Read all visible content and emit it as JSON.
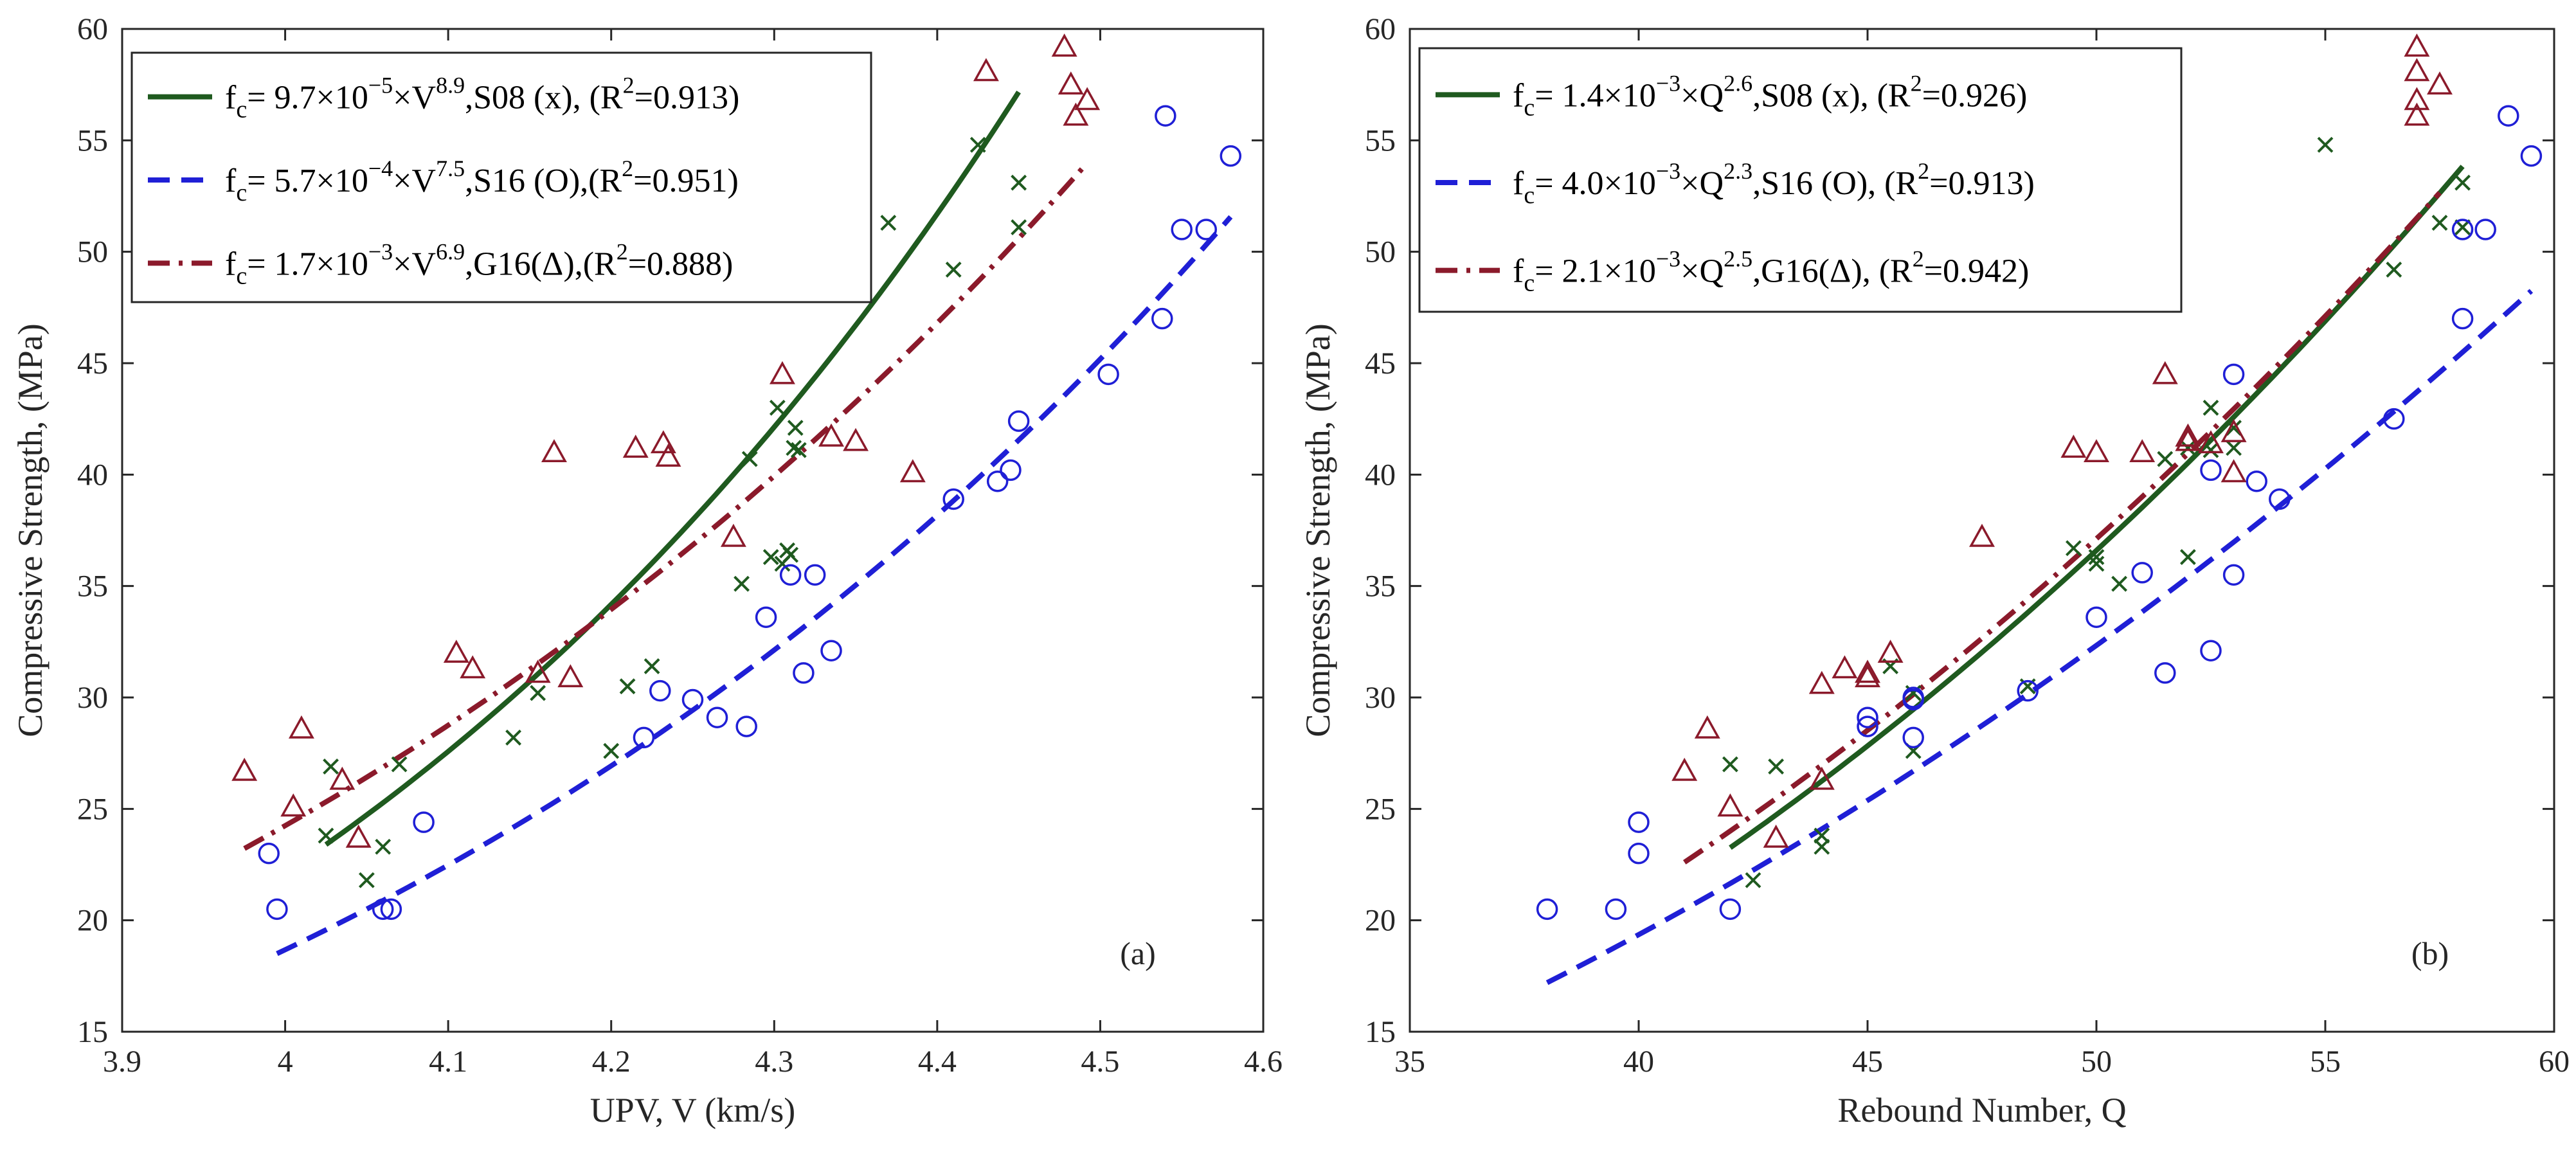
{
  "colors": {
    "s08": "#1f5a1f",
    "s16": "#1f1fd6",
    "g16": "#8b1a2b",
    "axis": "#262626"
  },
  "chart_data": [
    {
      "panel": "(a)",
      "type": "scatter",
      "xlabel": "UPV, V (km/s)",
      "ylabel": "Compressive Strength, (MPa)",
      "xlim": [
        3.9,
        4.6
      ],
      "ylim": [
        15,
        60
      ],
      "xticks": [
        3.9,
        4.0,
        4.1,
        4.2,
        4.3,
        4.4,
        4.5,
        4.6
      ],
      "xtick_labels": [
        "3.9",
        "4",
        "4.1",
        "4.2",
        "4.3",
        "4.4",
        "4.5",
        "4.6"
      ],
      "yticks": [
        15,
        20,
        25,
        30,
        35,
        40,
        45,
        50,
        55,
        60
      ],
      "ytick_labels": [
        "15",
        "20",
        "25",
        "30",
        "35",
        "40",
        "45",
        "50",
        "55",
        "60"
      ],
      "legend_position": "top-left",
      "series": [
        {
          "name": "S08 (x)",
          "marker": "x",
          "color_key": "s08",
          "points": [
            [
              4.025,
              23.8
            ],
            [
              4.028,
              26.9
            ],
            [
              4.05,
              21.8
            ],
            [
              4.06,
              23.3
            ],
            [
              4.07,
              27.0
            ],
            [
              4.14,
              28.2
            ],
            [
              4.155,
              30.2
            ],
            [
              4.2,
              27.6
            ],
            [
              4.21,
              30.5
            ],
            [
              4.225,
              31.4
            ],
            [
              4.28,
              35.1
            ],
            [
              4.285,
              40.7
            ],
            [
              4.298,
              36.3
            ],
            [
              4.302,
              43.0
            ],
            [
              4.305,
              36.0
            ],
            [
              4.308,
              36.6
            ],
            [
              4.31,
              36.4
            ],
            [
              4.312,
              41.2
            ],
            [
              4.313,
              42.1
            ],
            [
              4.315,
              41.1
            ],
            [
              4.37,
              51.3
            ],
            [
              4.41,
              49.2
            ],
            [
              4.425,
              54.8
            ],
            [
              4.45,
              51.1
            ],
            [
              4.45,
              53.1
            ]
          ]
        },
        {
          "name": "S16 (O)",
          "marker": "o",
          "color_key": "s16",
          "points": [
            [
              3.99,
              23.0
            ],
            [
              3.995,
              20.5
            ],
            [
              4.06,
              20.5
            ],
            [
              4.065,
              20.5
            ],
            [
              4.085,
              24.4
            ],
            [
              4.22,
              28.2
            ],
            [
              4.23,
              30.3
            ],
            [
              4.25,
              29.9
            ],
            [
              4.265,
              29.1
            ],
            [
              4.283,
              28.7
            ],
            [
              4.295,
              33.6
            ],
            [
              4.31,
              35.5
            ],
            [
              4.318,
              31.1
            ],
            [
              4.325,
              35.5
            ],
            [
              4.335,
              32.1
            ],
            [
              4.41,
              38.9
            ],
            [
              4.437,
              39.7
            ],
            [
              4.445,
              40.2
            ],
            [
              4.45,
              42.4
            ],
            [
              4.505,
              44.5
            ],
            [
              4.538,
              47.0
            ],
            [
              4.54,
              56.1
            ],
            [
              4.55,
              51.0
            ],
            [
              4.565,
              51.0
            ],
            [
              4.58,
              54.3
            ]
          ]
        },
        {
          "name": "G16 (Δ)",
          "marker": "triangle",
          "color_key": "g16",
          "points": [
            [
              3.975,
              26.7
            ],
            [
              4.005,
              25.1
            ],
            [
              4.01,
              28.6
            ],
            [
              4.035,
              26.3
            ],
            [
              4.045,
              23.7
            ],
            [
              4.105,
              32.0
            ],
            [
              4.115,
              31.3
            ],
            [
              4.155,
              31.1
            ],
            [
              4.165,
              41.0
            ],
            [
              4.175,
              30.9
            ],
            [
              4.215,
              41.2
            ],
            [
              4.232,
              41.4
            ],
            [
              4.235,
              40.8
            ],
            [
              4.275,
              37.2
            ],
            [
              4.305,
              44.5
            ],
            [
              4.335,
              41.7
            ],
            [
              4.35,
              41.5
            ],
            [
              4.385,
              40.1
            ],
            [
              4.43,
              58.1
            ],
            [
              4.478,
              59.2
            ],
            [
              4.482,
              57.5
            ],
            [
              4.485,
              56.1
            ],
            [
              4.492,
              56.8
            ]
          ]
        }
      ],
      "fits": [
        {
          "name": "S08 fit",
          "color_key": "s08",
          "style": "solid",
          "coef": 9.7e-05,
          "exp": 8.9,
          "x_range": [
            4.025,
            4.45
          ]
        },
        {
          "name": "S16 fit",
          "color_key": "s16",
          "style": "dash",
          "coef": 0.00057,
          "exp": 7.5,
          "x_range": [
            3.995,
            4.58
          ]
        },
        {
          "name": "G16 fit",
          "color_key": "g16",
          "style": "dashdot",
          "coef": 0.0017,
          "exp": 6.9,
          "x_range": [
            3.975,
            4.492
          ]
        }
      ],
      "legend": [
        {
          "pre": "f",
          "sub": "c",
          "mid": "= 9.7×10",
          "sup1": "−5",
          "mid2": "×V",
          "sup2": "8.9",
          "post": ",S08 (x), (R",
          "sup3": "2",
          "end": "=0.913)"
        },
        {
          "pre": "f",
          "sub": "c",
          "mid": "= 5.7×10",
          "sup1": "−4",
          "mid2": "×V",
          "sup2": "7.5",
          "post": ",S16 (O),(R",
          "sup3": "2",
          "end": "=0.951)"
        },
        {
          "pre": "f",
          "sub": "c",
          "mid": "= 1.7×10",
          "sup1": "−3",
          "mid2": "×V",
          "sup2": "6.9",
          "post": ",G16(Δ),(R",
          "sup3": "2",
          "end": "=0.888)"
        }
      ]
    },
    {
      "panel": "(b)",
      "type": "scatter",
      "xlabel": "Rebound Number, Q",
      "ylabel": "Compressive Strength, (MPa)",
      "xlim": [
        35,
        60
      ],
      "ylim": [
        15,
        60
      ],
      "xticks": [
        35,
        40,
        45,
        50,
        55,
        60
      ],
      "xtick_labels": [
        "35",
        "40",
        "45",
        "50",
        "55",
        "60"
      ],
      "yticks": [
        15,
        20,
        25,
        30,
        35,
        40,
        45,
        50,
        55,
        60
      ],
      "ytick_labels": [
        "15",
        "20",
        "25",
        "30",
        "35",
        "40",
        "45",
        "50",
        "55",
        "60"
      ],
      "legend_position": "top-left",
      "series": [
        {
          "name": "S08 (x)",
          "marker": "x",
          "color_key": "s08",
          "points": [
            [
              42,
              27.0
            ],
            [
              42.5,
              21.8
            ],
            [
              43,
              26.9
            ],
            [
              44,
              23.8
            ],
            [
              44,
              23.3
            ],
            [
              45.5,
              31.4
            ],
            [
              46,
              27.6
            ],
            [
              46,
              30.2
            ],
            [
              48.5,
              30.5
            ],
            [
              49.5,
              36.7
            ],
            [
              50,
              36.3
            ],
            [
              50,
              36.0
            ],
            [
              50.5,
              35.1
            ],
            [
              51.5,
              40.7
            ],
            [
              52,
              41.2
            ],
            [
              52,
              36.3
            ],
            [
              52.5,
              43.0
            ],
            [
              52.5,
              41.1
            ],
            [
              53,
              41.2
            ],
            [
              53,
              42.1
            ],
            [
              55,
              54.8
            ],
            [
              56.5,
              49.2
            ],
            [
              57.5,
              51.3
            ],
            [
              58,
              53.1
            ],
            [
              58,
              51.1
            ]
          ]
        },
        {
          "name": "S16 (O)",
          "marker": "o",
          "color_key": "s16",
          "points": [
            [
              38,
              20.5
            ],
            [
              39.5,
              20.5
            ],
            [
              40,
              24.4
            ],
            [
              40,
              23.0
            ],
            [
              42,
              20.5
            ],
            [
              45,
              29.1
            ],
            [
              45,
              28.7
            ],
            [
              46,
              28.2
            ],
            [
              46,
              29.9
            ],
            [
              46,
              30.0
            ],
            [
              48.5,
              30.3
            ],
            [
              50,
              33.6
            ],
            [
              51,
              35.6
            ],
            [
              51.5,
              31.1
            ],
            [
              52.5,
              40.2
            ],
            [
              52.5,
              32.1
            ],
            [
              53,
              44.5
            ],
            [
              53,
              35.5
            ],
            [
              53.5,
              39.7
            ],
            [
              54,
              38.9
            ],
            [
              56.5,
              42.5
            ],
            [
              58,
              51.0
            ],
            [
              58,
              47.0
            ],
            [
              58.5,
              51.0
            ],
            [
              59,
              56.1
            ],
            [
              59.5,
              54.3
            ]
          ]
        },
        {
          "name": "G16 (Δ)",
          "marker": "triangle",
          "color_key": "g16",
          "points": [
            [
              41,
              26.7
            ],
            [
              41.5,
              28.6
            ],
            [
              42,
              25.1
            ],
            [
              43,
              23.7
            ],
            [
              44,
              26.3
            ],
            [
              44,
              30.6
            ],
            [
              44.5,
              31.3
            ],
            [
              45,
              31.1
            ],
            [
              45,
              30.9
            ],
            [
              45.5,
              32.0
            ],
            [
              47.5,
              37.2
            ],
            [
              49.5,
              41.2
            ],
            [
              50,
              41.0
            ],
            [
              51,
              41.0
            ],
            [
              51.5,
              44.5
            ],
            [
              52,
              41.7
            ],
            [
              52,
              41.5
            ],
            [
              52.5,
              41.4
            ],
            [
              53,
              40.1
            ],
            [
              53,
              41.9
            ],
            [
              57,
              59.2
            ],
            [
              57,
              58.1
            ],
            [
              57,
              56.8
            ],
            [
              57,
              56.1
            ],
            [
              57.5,
              57.5
            ]
          ]
        }
      ],
      "fits": [
        {
          "name": "S08 fit",
          "color_key": "s08",
          "style": "solid",
          "coef": 0.0014,
          "exp": 2.6,
          "x_range": [
            42,
            58
          ]
        },
        {
          "name": "S16 fit",
          "color_key": "s16",
          "style": "dash",
          "coef": 0.004,
          "exp": 2.3,
          "x_range": [
            38,
            59.5
          ]
        },
        {
          "name": "G16 fit",
          "color_key": "g16",
          "style": "dashdot",
          "coef": 0.0021,
          "exp": 2.5,
          "x_range": [
            41,
            57.5
          ]
        }
      ],
      "legend": [
        {
          "pre": "f",
          "sub": "c",
          "mid": "= 1.4×10",
          "sup1": "−3",
          "mid2": "×Q",
          "sup2": "2.6",
          "post": ",S08 (x),  (R",
          "sup3": "2",
          "end": "=0.926)"
        },
        {
          "pre": "f",
          "sub": "c",
          "mid": "= 4.0×10",
          "sup1": "−3",
          "mid2": "×Q",
          "sup2": "2.3",
          "post": ",S16 (O), (R",
          "sup3": "2",
          "end": "=0.913)"
        },
        {
          "pre": "f",
          "sub": "c",
          "mid": "= 2.1×10",
          "sup1": "−3",
          "mid2": "×Q",
          "sup2": "2.5",
          "post": ",G16(Δ), (R",
          "sup3": "2",
          "end": "=0.942)"
        }
      ]
    }
  ]
}
